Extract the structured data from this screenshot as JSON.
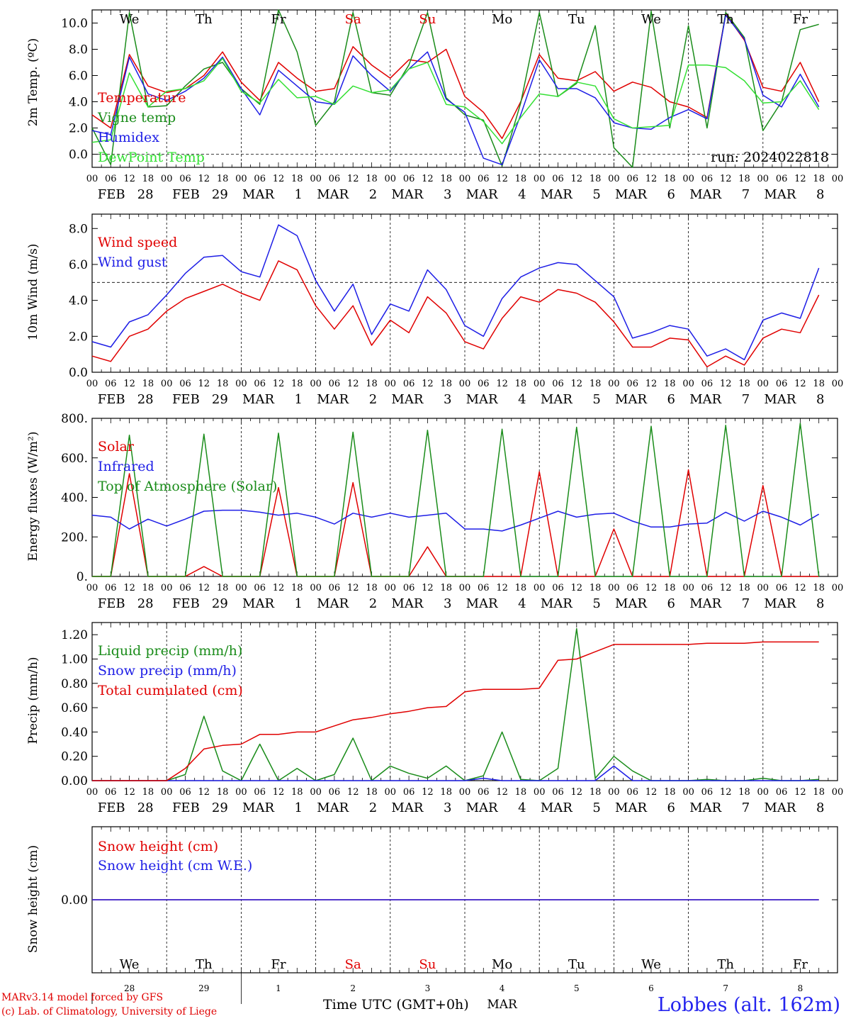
{
  "colors": {
    "red": "#e00000",
    "green": "#1a8c1a",
    "blue": "#1e1ee6",
    "lightgreen": "#33e033",
    "purple": "#8a2c8a",
    "grid": "#000000"
  },
  "time_axis": {
    "hour_ticks": [
      "00",
      "06",
      "12",
      "18"
    ],
    "final_tick": "00",
    "dates": [
      "FEB 28",
      "FEB 29",
      "MAR 1",
      "MAR 2",
      "MAR 3",
      "MAR 4",
      "MAR 5",
      "MAR 6",
      "MAR 7",
      "MAR 8"
    ],
    "weekdays": [
      "We",
      "Th",
      "Fr",
      "Sa",
      "Su",
      "Mo",
      "Tu",
      "We",
      "Th",
      "Fr"
    ],
    "weekday_colors": [
      "#000000",
      "#000000",
      "#000000",
      "#e00000",
      "#e00000",
      "#000000",
      "#000000",
      "#000000",
      "#000000",
      "#000000"
    ],
    "day_numbers": [
      "28",
      "29",
      "1",
      "2",
      "3",
      "4",
      "5",
      "6",
      "7",
      "8"
    ],
    "month_label": "MAR"
  },
  "footer": {
    "model": "MARv3.14 model forced by GFS",
    "lab": "(c) Lab. of Climatology, University of Liege",
    "time_label": "Time UTC (GMT+0h)",
    "station": "Lobbes (alt. 162m)"
  },
  "chart_data": [
    {
      "type": "line",
      "ylabel": "2m Temp. (ºC)",
      "ylim": [
        -1,
        11
      ],
      "yticks": [
        "0.0",
        "2.0",
        "4.0",
        "6.0",
        "8.0",
        "10.0"
      ],
      "reference_line": 0,
      "annotation": "run: 2024022818",
      "x": [
        0,
        6,
        12,
        18,
        24,
        30,
        36,
        42,
        48,
        54,
        60,
        66,
        72,
        78,
        84,
        90,
        96,
        102,
        108,
        114,
        120,
        126,
        132,
        138,
        144,
        150,
        156,
        162,
        168,
        174,
        180,
        186,
        192,
        198,
        204,
        210,
        216,
        222,
        228,
        234
      ],
      "series": [
        {
          "name": "Temperature",
          "color": "red",
          "values": [
            3.0,
            2.0,
            7.6,
            5.2,
            4.7,
            5.0,
            6.0,
            7.8,
            5.5,
            4.1,
            7.0,
            5.8,
            4.8,
            5.0,
            8.2,
            6.8,
            5.8,
            7.2,
            7.0,
            8.0,
            4.4,
            3.2,
            1.2,
            4.0,
            7.6,
            5.8,
            5.6,
            6.3,
            4.8,
            5.5,
            5.1,
            4.0,
            3.6,
            2.8,
            10.7,
            8.7,
            5.1,
            4.8,
            7.0,
            4.0
          ]
        },
        {
          "name": "Vigne temp",
          "color": "green",
          "values": [
            2.0,
            -0.8,
            10.8,
            3.6,
            3.7,
            5.2,
            6.5,
            7.0,
            5.0,
            3.8,
            11.0,
            7.8,
            2.2,
            4.0,
            10.8,
            4.7,
            4.5,
            6.8,
            10.8,
            4.3,
            3.0,
            2.6,
            -0.9,
            3.9,
            10.8,
            4.4,
            5.4,
            9.8,
            0.5,
            -1.0,
            10.9,
            2.0,
            9.8,
            2.0,
            10.8,
            8.9,
            1.8,
            4.0,
            9.5,
            9.9
          ]
        },
        {
          "name": "Humidex",
          "color": "blue",
          "values": [
            1.8,
            1.5,
            7.4,
            4.6,
            4.1,
            4.8,
            5.8,
            7.4,
            5.0,
            3.0,
            6.4,
            5.2,
            4.0,
            3.8,
            7.5,
            6.0,
            4.8,
            6.5,
            7.8,
            4.2,
            3.2,
            -0.3,
            -0.8,
            3.0,
            7.2,
            5.0,
            5.0,
            4.3,
            2.4,
            2.0,
            1.9,
            2.8,
            3.4,
            2.7,
            10.6,
            8.8,
            4.5,
            3.6,
            6.1,
            3.6
          ]
        },
        {
          "name": "DewPoint Temp",
          "color": "lightgreen",
          "values": [
            0.9,
            1.1,
            6.2,
            3.6,
            4.8,
            5.0,
            5.6,
            7.3,
            4.8,
            3.9,
            5.7,
            4.3,
            4.4,
            3.8,
            5.2,
            4.7,
            4.9,
            6.5,
            7.0,
            3.8,
            3.6,
            2.5,
            0.8,
            2.8,
            4.6,
            4.4,
            5.5,
            5.2,
            2.7,
            2.0,
            2.1,
            2.2,
            6.8,
            6.8,
            6.6,
            5.6,
            3.9,
            4.0,
            5.6,
            3.4
          ]
        }
      ]
    },
    {
      "type": "line",
      "ylabel": "10m Wind (m/s)",
      "ylim": [
        0,
        8.8
      ],
      "yticks": [
        "0.0",
        "2.0",
        "4.0",
        "6.0",
        "8.0"
      ],
      "reference_line": 5,
      "x": [
        0,
        6,
        12,
        18,
        24,
        30,
        36,
        42,
        48,
        54,
        60,
        66,
        72,
        78,
        84,
        90,
        96,
        102,
        108,
        114,
        120,
        126,
        132,
        138,
        144,
        150,
        156,
        162,
        168,
        174,
        180,
        186,
        192,
        198,
        204,
        210,
        216,
        222,
        228,
        234
      ],
      "series": [
        {
          "name": "Wind speed",
          "color": "red",
          "values": [
            0.9,
            0.6,
            2.0,
            2.4,
            3.4,
            4.1,
            4.5,
            4.9,
            4.4,
            4.0,
            6.2,
            5.7,
            3.7,
            2.4,
            3.7,
            1.5,
            2.9,
            2.2,
            4.2,
            3.3,
            1.7,
            1.3,
            3.0,
            4.2,
            3.9,
            4.6,
            4.4,
            3.9,
            2.8,
            1.4,
            1.4,
            1.9,
            1.8,
            0.3,
            0.9,
            0.4,
            1.9,
            2.4,
            2.2,
            4.3
          ]
        },
        {
          "name": "Wind gust",
          "color": "blue",
          "values": [
            1.7,
            1.4,
            2.8,
            3.2,
            4.3,
            5.5,
            6.4,
            6.5,
            5.6,
            5.3,
            8.2,
            7.6,
            5.1,
            3.4,
            4.9,
            2.1,
            3.8,
            3.4,
            5.7,
            4.6,
            2.6,
            2.0,
            4.1,
            5.3,
            5.8,
            6.1,
            6.0,
            5.1,
            4.2,
            1.9,
            2.2,
            2.6,
            2.4,
            0.9,
            1.3,
            0.7,
            2.9,
            3.3,
            3.0,
            5.8
          ]
        }
      ]
    },
    {
      "type": "line",
      "ylabel": "Energy fluxes (W/m²)",
      "ylim": [
        0,
        800
      ],
      "yticks": [
        "0.",
        "200.",
        "400.",
        "600.",
        "800."
      ],
      "x": [
        0,
        6,
        12,
        18,
        24,
        30,
        36,
        42,
        48,
        54,
        60,
        66,
        72,
        78,
        84,
        90,
        96,
        102,
        108,
        114,
        120,
        126,
        132,
        138,
        144,
        150,
        156,
        162,
        168,
        174,
        180,
        186,
        192,
        198,
        204,
        210,
        216,
        222,
        228,
        234
      ],
      "series": [
        {
          "name": "Solar",
          "color": "red",
          "values": [
            0,
            0,
            520,
            0,
            0,
            0,
            50,
            0,
            0,
            0,
            450,
            0,
            0,
            0,
            475,
            0,
            0,
            0,
            150,
            0,
            0,
            0,
            0,
            0,
            530,
            0,
            0,
            0,
            240,
            0,
            0,
            0,
            540,
            0,
            0,
            0,
            460,
            0,
            0,
            0
          ]
        },
        {
          "name": "Infrared",
          "color": "blue",
          "values": [
            310,
            300,
            240,
            290,
            255,
            290,
            330,
            335,
            335,
            325,
            310,
            320,
            300,
            265,
            320,
            300,
            320,
            300,
            310,
            320,
            240,
            240,
            230,
            260,
            295,
            330,
            300,
            315,
            320,
            280,
            250,
            250,
            265,
            270,
            325,
            280,
            330,
            300,
            260,
            315
          ]
        },
        {
          "name": "Top of Atmosphere (Solar)",
          "color": "green",
          "values": [
            0,
            0,
            715,
            0,
            0,
            0,
            720,
            0,
            0,
            0,
            725,
            0,
            0,
            0,
            730,
            0,
            0,
            0,
            740,
            0,
            0,
            0,
            745,
            0,
            0,
            0,
            755,
            0,
            0,
            0,
            760,
            0,
            0,
            0,
            765,
            0,
            0,
            0,
            775,
            0
          ]
        }
      ]
    },
    {
      "type": "line",
      "ylabel": "Precip (mm/h)",
      "ylim": [
        0,
        1.3
      ],
      "yticks": [
        "0.00",
        "0.20",
        "0.40",
        "0.60",
        "0.80",
        "1.00",
        "1.20"
      ],
      "x": [
        0,
        6,
        12,
        18,
        24,
        30,
        36,
        42,
        48,
        54,
        60,
        66,
        72,
        78,
        84,
        90,
        96,
        102,
        108,
        114,
        120,
        126,
        132,
        138,
        144,
        150,
        156,
        162,
        168,
        174,
        180,
        186,
        192,
        198,
        204,
        210,
        216,
        222,
        228,
        234
      ],
      "series": [
        {
          "name": "Liquid precip (mm/h)",
          "color": "green",
          "values": [
            0,
            0,
            0,
            0,
            0,
            0.05,
            0.53,
            0.08,
            0,
            0.3,
            0,
            0.1,
            0,
            0.05,
            0.35,
            0,
            0.12,
            0.06,
            0.02,
            0.12,
            0,
            0.04,
            0.4,
            0.01,
            0,
            0.1,
            1.25,
            0.02,
            0.2,
            0.08,
            0,
            0,
            0,
            0.01,
            0,
            0,
            0.02,
            0,
            0,
            0.01
          ]
        },
        {
          "name": "Snow precip (mm/h)",
          "color": "blue",
          "values": [
            0,
            0,
            0,
            0,
            0,
            0,
            0,
            0,
            0,
            0,
            0,
            0,
            0,
            0,
            0,
            0,
            0,
            0,
            0,
            0,
            0,
            0.02,
            0,
            0,
            0,
            0,
            0,
            0,
            0.12,
            0,
            0,
            0,
            0,
            0,
            0,
            0,
            0,
            0,
            0,
            0
          ]
        },
        {
          "name": "Total cumulated (cm)",
          "color": "red",
          "values": [
            0,
            0,
            0,
            0,
            0,
            0.1,
            0.26,
            0.29,
            0.3,
            0.38,
            0.38,
            0.4,
            0.4,
            0.45,
            0.5,
            0.52,
            0.55,
            0.57,
            0.6,
            0.61,
            0.73,
            0.75,
            0.75,
            0.75,
            0.76,
            0.99,
            1.0,
            1.06,
            1.12,
            1.12,
            1.12,
            1.12,
            1.12,
            1.13,
            1.13,
            1.13,
            1.14,
            1.14,
            1.14,
            1.14
          ]
        }
      ]
    },
    {
      "type": "line",
      "ylabel": "Snow height (cm)",
      "ylim": [
        -1,
        1
      ],
      "yticks": [
        "0.00"
      ],
      "x": [
        0,
        234
      ],
      "series": [
        {
          "name": "Snow height (cm)",
          "color": "red",
          "values": [
            0,
            0
          ]
        },
        {
          "name": "Snow height (cm W.E.)",
          "color": "blue",
          "values": [
            0,
            0
          ]
        }
      ]
    }
  ]
}
